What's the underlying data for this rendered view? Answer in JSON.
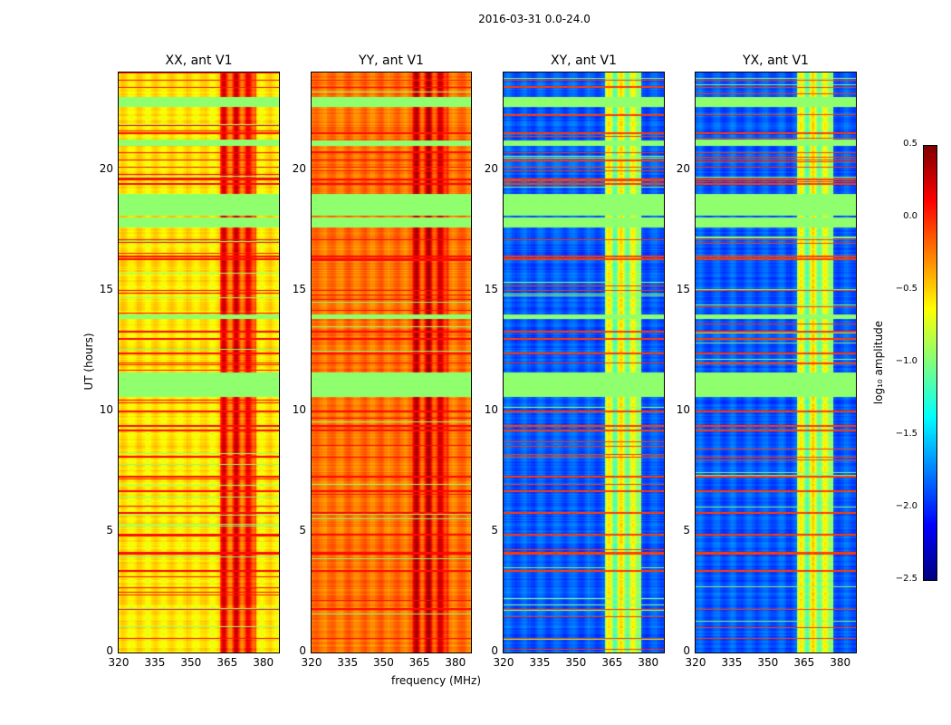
{
  "chart_data": {
    "type": "heatmap",
    "title": "2016-03-31 0.0-24.0",
    "xlabel": "frequency (MHz)",
    "ylabel": "UT (hours)",
    "xlim": [
      320,
      386.5
    ],
    "ylim": [
      0,
      24
    ],
    "xticks": [
      320,
      335,
      350,
      365,
      380
    ],
    "yticks": [
      0,
      5,
      10,
      15,
      20
    ],
    "panels": [
      {
        "title": "XX, ant V1",
        "base_level": -0.6,
        "rfi_band_level": -0.05
      },
      {
        "title": "YY, ant V1",
        "base_level": -0.25,
        "rfi_band_level": 0.05
      },
      {
        "title": "XY, ant V1",
        "base_level": -1.9,
        "rfi_band_level": -0.85
      },
      {
        "title": "YX, ant V1",
        "base_level": -1.9,
        "rfi_band_level": -0.85
      }
    ],
    "rfi_band_mhz": [
      362,
      377
    ],
    "flagged_hours": [
      [
        10.6,
        11.6
      ],
      [
        18.1,
        19.0
      ],
      [
        21.0,
        21.2
      ],
      [
        17.6,
        18.0
      ],
      [
        13.8,
        14.0
      ],
      [
        22.6,
        23.0
      ]
    ],
    "flag_level": -0.95,
    "bright_rows_hours": [
      0.6,
      1.8,
      3.4,
      4.1,
      4.15,
      4.9,
      5.8,
      6.7,
      7.3,
      8.1,
      9.2,
      9.4,
      10.0,
      12.0,
      12.4,
      13.0,
      13.3,
      15.0,
      16.3,
      16.4,
      17.1,
      19.4,
      19.6,
      20.1,
      20.4,
      20.7,
      21.5,
      23.4,
      23.7
    ],
    "colorbar": {
      "label": "log₁₀ amplitude",
      "range": [
        -2.5,
        0.5
      ],
      "ticks": [
        "0.5",
        "0.0",
        "−0.5",
        "−1.0",
        "−1.5",
        "−2.0",
        "−2.5"
      ],
      "colormap": "jet"
    }
  }
}
